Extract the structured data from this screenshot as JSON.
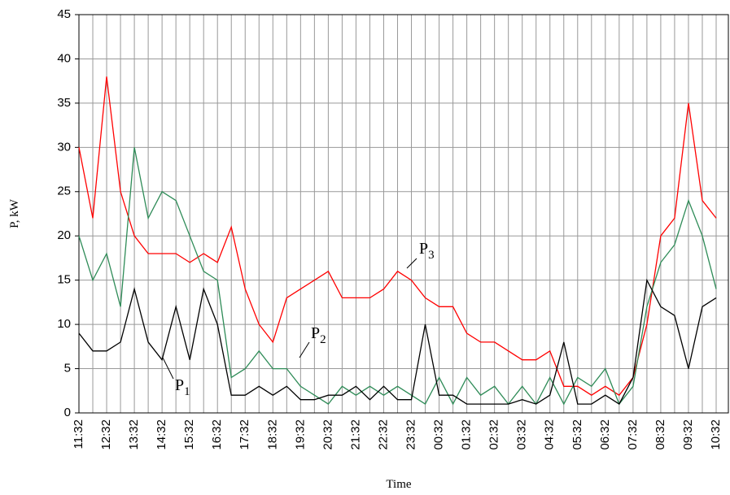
{
  "chart_data": {
    "type": "line",
    "y_label": "P, kW",
    "x_label": "Time",
    "categories": [
      "11:32",
      null,
      "12:32",
      null,
      "13:32",
      null,
      "14:32",
      null,
      "15:32",
      null,
      "16:32",
      null,
      "17:32",
      null,
      "18:32",
      null,
      "19:32",
      null,
      "20:32",
      null,
      "21:32",
      null,
      "22:32",
      null,
      "23:32",
      null,
      "00:32",
      null,
      "01:32",
      null,
      "02:32",
      null,
      "03:32",
      null,
      "04:32",
      null,
      "05:32",
      null,
      "06:32",
      null,
      "07:32",
      null,
      "08:32",
      null,
      "09:32",
      null,
      "10:32"
    ],
    "series": [
      {
        "name": "P3",
        "color": "#ff0000",
        "values": [
          30,
          22,
          38,
          25,
          20,
          18,
          18,
          18,
          17,
          18,
          17,
          21,
          14,
          10,
          8,
          13,
          14,
          15,
          16,
          13,
          13,
          13,
          14,
          16,
          15,
          13,
          12,
          12,
          9,
          8,
          8,
          7,
          6,
          6,
          7,
          3,
          3,
          2,
          3,
          2,
          4,
          10,
          20,
          22,
          35,
          24,
          22
        ]
      },
      {
        "name": "P2",
        "color": "#2e8b57",
        "values": [
          20,
          15,
          18,
          12,
          30,
          22,
          25,
          24,
          20,
          16,
          15,
          4,
          5,
          7,
          5,
          5,
          3,
          2,
          1,
          3,
          2,
          3,
          2,
          3,
          2,
          1,
          4,
          1,
          4,
          2,
          3,
          1,
          3,
          1,
          4,
          1,
          4,
          3,
          5,
          1,
          3,
          12,
          17,
          19,
          24,
          20,
          14
        ]
      },
      {
        "name": "P1",
        "color": "#000000",
        "values": [
          9,
          7,
          7,
          8,
          14,
          8,
          6,
          12,
          6,
          14,
          10,
          2,
          2,
          3,
          2,
          3,
          1.5,
          1.5,
          2,
          2,
          3,
          1.5,
          3,
          1.5,
          1.5,
          10,
          2,
          2,
          1,
          1,
          1,
          1,
          1.5,
          1,
          2,
          8,
          1,
          1,
          2,
          1,
          4,
          15,
          12,
          11,
          5,
          12,
          13
        ]
      }
    ],
    "annotations": [
      {
        "text": "P",
        "sub": "3"
      },
      {
        "text": "P",
        "sub": "2"
      },
      {
        "text": "P",
        "sub": "1"
      }
    ],
    "ylim": [
      0,
      45
    ],
    "yticks": [
      0,
      5,
      10,
      15,
      20,
      25,
      30,
      35,
      40,
      45
    ],
    "grid": true
  }
}
